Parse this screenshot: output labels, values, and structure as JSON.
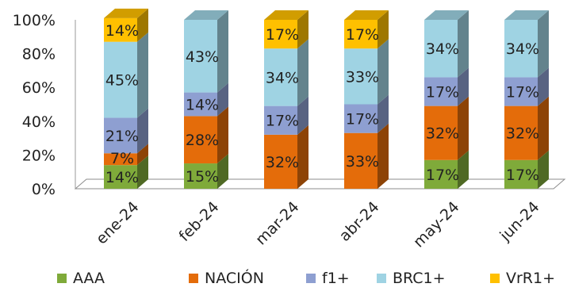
{
  "chart_data": {
    "type": "bar",
    "stacked": "percent",
    "three_d": true,
    "categories": [
      "ene-24",
      "feb-24",
      "mar-24",
      "abr-24",
      "may-24",
      "jun-24"
    ],
    "series": [
      {
        "name": "AAA",
        "color": "#7faa3a",
        "values": [
          14,
          15,
          0,
          0,
          17,
          17
        ],
        "labels": [
          "14%",
          "15%",
          "",
          "",
          "17%",
          "17%"
        ]
      },
      {
        "name": "NACIÓN",
        "color": "#e46c0a",
        "values": [
          7,
          28,
          32,
          33,
          32,
          32
        ],
        "labels": [
          "7%",
          "28%",
          "32%",
          "33%",
          "32%",
          "32%"
        ]
      },
      {
        "name": "f1+",
        "color": "#8e9fd1",
        "values": [
          21,
          14,
          17,
          17,
          17,
          17
        ],
        "labels": [
          "21%",
          "14%",
          "17%",
          "17%",
          "17%",
          "17%"
        ]
      },
      {
        "name": "BRC1+",
        "color": "#9fd3e3",
        "values": [
          45,
          43,
          34,
          33,
          34,
          34
        ],
        "labels": [
          "45%",
          "43%",
          "34%",
          "33%",
          "34%",
          "34%"
        ]
      },
      {
        "name": "VrR1+",
        "color": "#ffc000",
        "values": [
          14,
          0,
          17,
          17,
          0,
          0
        ],
        "labels": [
          "14%",
          "",
          "17%",
          "17%",
          "",
          ""
        ]
      }
    ],
    "y_ticks": [
      "0%",
      "20%",
      "40%",
      "60%",
      "80%",
      "100%"
    ],
    "ylim": [
      0,
      100
    ],
    "grid": false,
    "legend": "bottom"
  }
}
